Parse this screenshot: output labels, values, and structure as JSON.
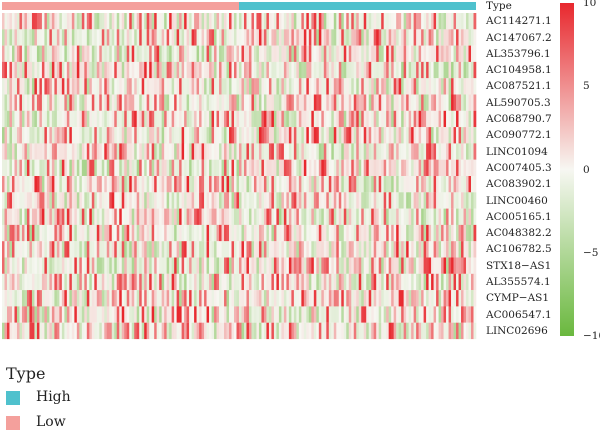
{
  "chart_data": {
    "type": "heatmap",
    "title": "",
    "annotation_row_label": "Type",
    "rows": [
      "AC114271.1",
      "AC147067.2",
      "AL353796.1",
      "AC104958.1",
      "AC087521.1",
      "AL590705.3",
      "AC068790.7",
      "AC090772.1",
      "LINC01094",
      "AC007405.3",
      "AC083902.1",
      "LINC00460",
      "AC005165.1",
      "AC048382.2",
      "AC106782.5",
      "STX18−AS1",
      "AL355574.1",
      "CYMP−AS1",
      "AC006547.1",
      "LINC02696"
    ],
    "groups": [
      {
        "name": "Low",
        "color": "#f4a09c",
        "fraction": 0.5
      },
      {
        "name": "High",
        "color": "#4fc1cd",
        "fraction": 0.5
      }
    ],
    "colorbar": {
      "min": -10,
      "max": 10,
      "ticks": [
        10,
        5,
        0,
        -5,
        -10
      ],
      "tick_labels": [
        "10",
        "5",
        "0",
        "−5",
        "−10"
      ],
      "colors": {
        "high": "#e8282e",
        "mid": "#f7f7f2",
        "low": "#6ab83e"
      }
    },
    "legend": {
      "title": "Type",
      "items": [
        {
          "name": "High",
          "color": "#4fc1cd"
        },
        {
          "name": "Low",
          "color": "#f4a09c"
        }
      ]
    }
  }
}
